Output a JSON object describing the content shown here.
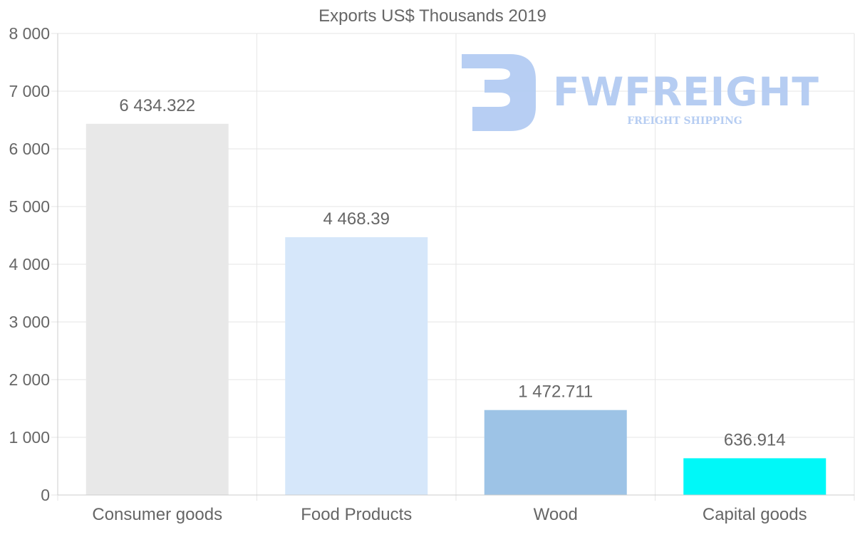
{
  "chart_data": {
    "type": "bar",
    "title": "Exports US$ Thousands 2019",
    "categories": [
      "Consumer goods",
      "Food Products",
      "Wood",
      "Capital goods"
    ],
    "values": [
      6434.322,
      4468.39,
      1472.711,
      636.914
    ],
    "value_labels": [
      "6 434.322",
      "4 468.39",
      "1 472.711",
      "636.914"
    ],
    "bar_colors": [
      "#e8e8e8",
      "#d6e7fa",
      "#9dc3e6",
      "#00f8f8"
    ],
    "ylim": [
      0,
      8000
    ],
    "yticks": [
      0,
      1000,
      2000,
      3000,
      4000,
      5000,
      6000,
      7000,
      8000
    ],
    "ytick_labels": [
      "0",
      "1 000",
      "2 000",
      "3 000",
      "4 000",
      "5 000",
      "6 000",
      "7 000",
      "8 000"
    ],
    "xlabel": "",
    "ylabel": "",
    "grid": true,
    "legend": "none"
  },
  "watermark": {
    "brand": "FWFREIGHT",
    "tagline": "FREIGHT SHIPPING",
    "color": "#b3cbf2"
  },
  "colors": {
    "text": "#666666",
    "grid": "#e6e6e6",
    "axis": "#cccccc"
  }
}
